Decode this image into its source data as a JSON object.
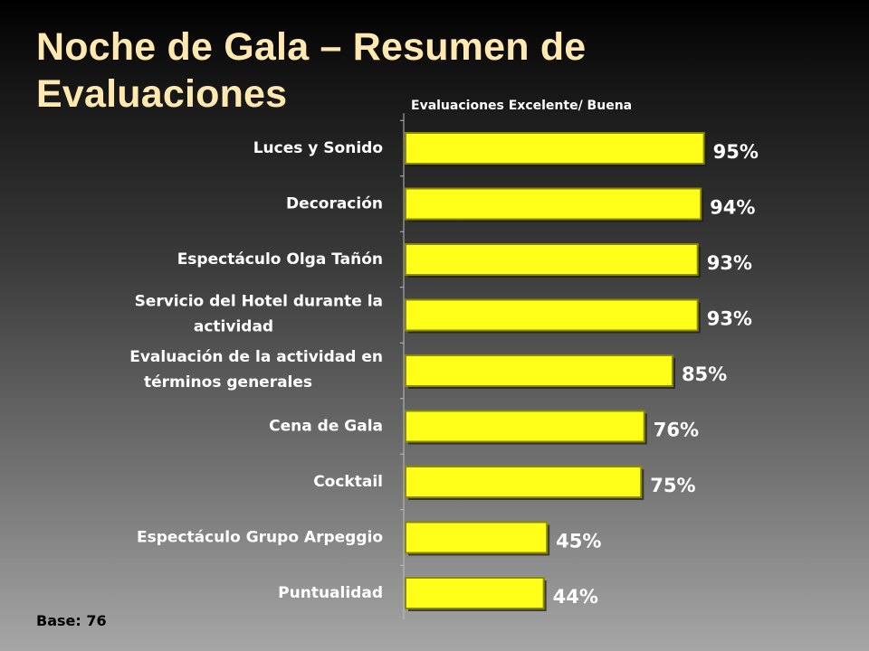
{
  "title": "Noche de Gala – Resumen de Evaluaciones",
  "subtitle": "Evaluaciones Excelente/ Buena",
  "base_note": "Base: 76",
  "colors": {
    "bar": "#ffff1a",
    "bar_edge": "#8a8a00",
    "text": "#ffffff",
    "title": "#ffe9b0"
  },
  "chart_data": {
    "type": "bar",
    "orientation": "horizontal",
    "title": "Evaluaciones Excelente/ Buena",
    "categories": [
      [
        "Luces y Sonido"
      ],
      [
        "Decoración"
      ],
      [
        "Espectáculo Olga Tañón"
      ],
      [
        "Servicio del Hotel durante la",
        "actividad"
      ],
      [
        "Evaluación de la actividad en",
        "términos generales"
      ],
      [
        "Cena de Gala"
      ],
      [
        "Cocktail"
      ],
      [
        "Espectáculo Grupo Arpeggio"
      ],
      [
        "Puntualidad"
      ]
    ],
    "values": [
      95,
      94,
      93,
      93,
      85,
      76,
      75,
      45,
      44
    ],
    "value_labels": [
      "95%",
      "94%",
      "93%",
      "93%",
      "85%",
      "76%",
      "75%",
      "45%",
      "44%"
    ],
    "unit": "%",
    "xlim": [
      0,
      100
    ],
    "grid": false,
    "legend": "none"
  }
}
